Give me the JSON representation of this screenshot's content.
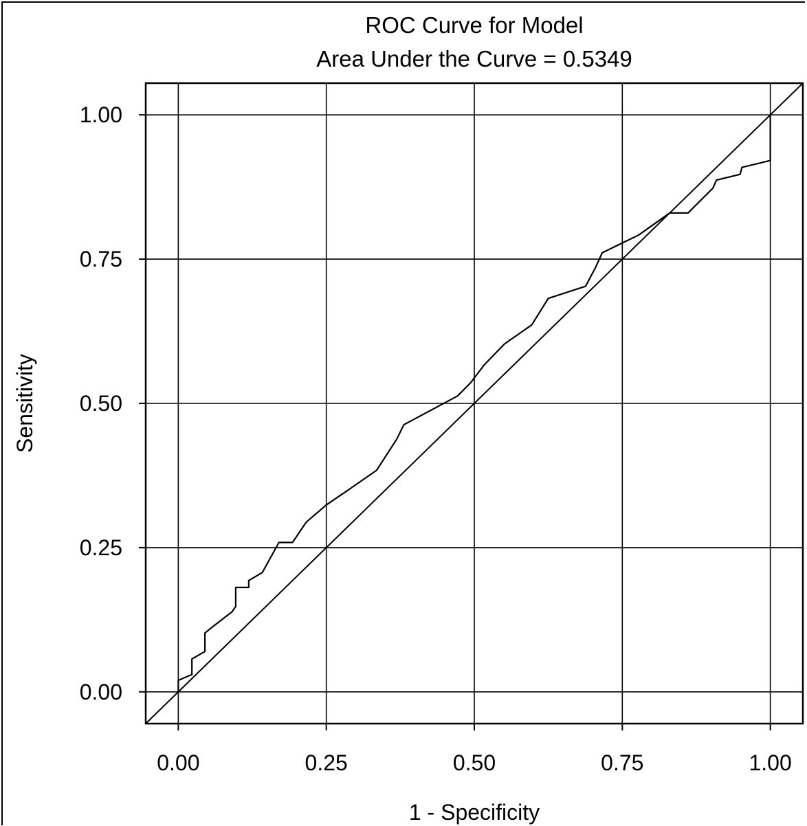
{
  "chart_data": {
    "type": "line",
    "title": "ROC Curve for Model",
    "subtitle": "Area Under the Curve = 0.5349",
    "xlabel": "1 - Specificity",
    "ylabel": "Sensitivity",
    "xlim": [
      -0.055,
      1.055
    ],
    "ylim": [
      -0.055,
      1.055
    ],
    "xticks": [
      0.0,
      0.25,
      0.5,
      0.75,
      1.0
    ],
    "yticks": [
      0.0,
      0.25,
      0.5,
      0.75,
      1.0
    ],
    "xtick_labels": [
      "0.00",
      "0.25",
      "0.50",
      "0.75",
      "1.00"
    ],
    "ytick_labels": [
      "0.00",
      "0.25",
      "0.50",
      "0.75",
      "1.00"
    ],
    "grid": true,
    "reference_line": {
      "x": [
        0,
        1
      ],
      "y": [
        0,
        1
      ]
    },
    "series": [
      {
        "x": [
          0.0,
          0.0,
          0.023,
          0.023,
          0.045,
          0.045,
          0.057,
          0.091,
          0.097,
          0.097,
          0.119,
          0.119,
          0.142,
          0.17,
          0.193,
          0.216,
          0.25,
          0.29,
          0.335,
          0.369,
          0.381,
          0.472,
          0.494,
          0.517,
          0.551,
          0.597,
          0.625,
          0.688,
          0.705,
          0.716,
          0.778,
          0.83,
          0.861,
          0.903,
          0.909,
          0.949,
          0.952,
          1.0,
          1.0
        ],
        "y": [
          0.0,
          0.02,
          0.03,
          0.057,
          0.07,
          0.102,
          0.112,
          0.139,
          0.148,
          0.181,
          0.181,
          0.193,
          0.207,
          0.259,
          0.259,
          0.294,
          0.324,
          0.352,
          0.384,
          0.438,
          0.463,
          0.513,
          0.536,
          0.567,
          0.603,
          0.636,
          0.682,
          0.703,
          0.736,
          0.761,
          0.792,
          0.83,
          0.83,
          0.873,
          0.887,
          0.897,
          0.909,
          0.921,
          1.0
        ]
      }
    ]
  }
}
